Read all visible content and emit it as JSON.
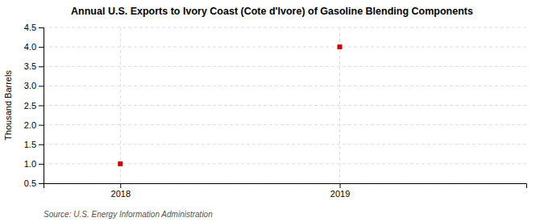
{
  "chart_data": {
    "type": "scatter",
    "title": "Annual U.S. Exports to Ivory Coast (Cote d'Ivore) of Gasoline Blending Components",
    "y_label": "Thousand Barrels",
    "source": "Source: U.S. Energy Information Administration",
    "x": [
      2018,
      2019
    ],
    "values": [
      1.0,
      4.0
    ],
    "color": "#cc0000",
    "marker": "square",
    "xlim": [
      2017.65,
      2019.85
    ],
    "xticks": [
      2018,
      2019
    ],
    "ylim": [
      0.5,
      4.5
    ],
    "yticks": [
      0.5,
      {
        "value": 1.0,
        "label": "1.0"
      },
      1.5,
      {
        "value": 2.0,
        "label": "2.0"
      },
      2.5,
      {
        "value": 3.0,
        "label": "3.0"
      },
      3.5,
      {
        "value": 4.0,
        "label": "4.0"
      },
      4.5
    ],
    "grid": true
  }
}
